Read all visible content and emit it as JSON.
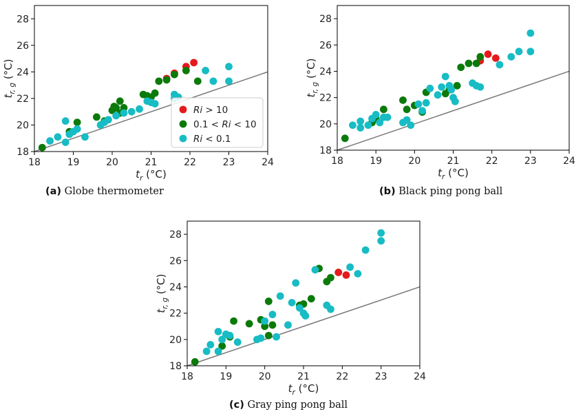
{
  "colors": {
    "red": "#e41a1c",
    "green": "#0b7a0b",
    "cyan": "#17bcc4",
    "line": "#777777"
  },
  "legend": [
    {
      "label_prefix": "",
      "label_var": "Ri",
      "label_suffix": " > 10",
      "color": "red"
    },
    {
      "label_prefix": "0.1 < ",
      "label_var": "Ri",
      "label_suffix": " < 10",
      "color": "green"
    },
    {
      "label_prefix": "",
      "label_var": "Ri",
      "label_suffix": " < 0.1",
      "color": "cyan"
    }
  ],
  "chart_data": [
    {
      "type": "scatter",
      "caption_id": "(a)",
      "caption_text": "Globe thermometer",
      "xlabel": {
        "var": "t",
        "sub": "r",
        "unit": " (°C)"
      },
      "ylabel": {
        "var": "t",
        "sub": "r, g",
        "unit": " (°C)"
      },
      "xlim": [
        18,
        24
      ],
      "ylim": [
        18,
        29
      ],
      "xticks": [
        18,
        19,
        20,
        21,
        22,
        23,
        24
      ],
      "yticks": [
        18,
        20,
        22,
        24,
        26,
        28
      ],
      "reference_line": [
        [
          18,
          18
        ],
        [
          24,
          24
        ]
      ],
      "legend_location": "lower-right",
      "series": [
        {
          "color": "red",
          "points": [
            [
              21.4,
              23.5
            ],
            [
              21.6,
              23.9
            ],
            [
              21.9,
              24.4
            ],
            [
              22.1,
              24.7
            ]
          ]
        },
        {
          "color": "green",
          "points": [
            [
              18.2,
              18.3
            ],
            [
              18.9,
              19.5
            ],
            [
              19.1,
              20.2
            ],
            [
              19.6,
              20.6
            ],
            [
              19.8,
              20.3
            ],
            [
              20.0,
              21.1
            ],
            [
              20.1,
              21.3
            ],
            [
              20.2,
              21.8
            ],
            [
              20.3,
              21.3
            ],
            [
              20.2,
              20.9
            ],
            [
              20.8,
              22.3
            ],
            [
              20.9,
              22.2
            ],
            [
              21.0,
              22.1
            ],
            [
              21.1,
              22.4
            ],
            [
              21.2,
              23.3
            ],
            [
              21.4,
              23.4
            ],
            [
              21.6,
              23.8
            ],
            [
              21.9,
              24.1
            ],
            [
              22.2,
              23.3
            ],
            [
              20.05,
              21.4
            ]
          ]
        },
        {
          "color": "cyan",
          "points": [
            [
              18.4,
              18.8
            ],
            [
              18.6,
              19.1
            ],
            [
              18.8,
              18.7
            ],
            [
              18.8,
              20.3
            ],
            [
              18.9,
              19.3
            ],
            [
              19.0,
              19.5
            ],
            [
              19.1,
              19.7
            ],
            [
              19.3,
              19.1
            ],
            [
              19.7,
              20.0
            ],
            [
              19.8,
              20.2
            ],
            [
              19.9,
              20.4
            ],
            [
              20.1,
              20.7
            ],
            [
              20.3,
              20.9
            ],
            [
              20.5,
              21.0
            ],
            [
              20.7,
              21.2
            ],
            [
              20.9,
              21.8
            ],
            [
              21.0,
              21.7
            ],
            [
              21.1,
              21.6
            ],
            [
              21.6,
              22.3
            ],
            [
              21.7,
              22.1
            ],
            [
              21.6,
              22.0
            ],
            [
              22.4,
              24.1
            ],
            [
              22.6,
              23.3
            ],
            [
              23.0,
              24.4
            ],
            [
              23.0,
              23.3
            ]
          ]
        }
      ]
    },
    {
      "type": "scatter",
      "caption_id": "(b)",
      "caption_text": "Black ping pong ball",
      "xlabel": {
        "var": "t",
        "sub": "r",
        "unit": " (°C)"
      },
      "ylabel": {
        "var": "t",
        "sub": "r, g",
        "unit": " (°C)"
      },
      "xlim": [
        18,
        24
      ],
      "ylim": [
        18,
        29
      ],
      "xticks": [
        18,
        19,
        20,
        21,
        22,
        23,
        24
      ],
      "yticks": [
        18,
        20,
        22,
        24,
        26,
        28
      ],
      "reference_line": [
        [
          18,
          18
        ],
        [
          24,
          24
        ]
      ],
      "series": [
        {
          "color": "red",
          "points": [
            [
              21.7,
              24.8
            ],
            [
              21.9,
              25.3
            ],
            [
              22.1,
              25.0
            ]
          ]
        },
        {
          "color": "green",
          "points": [
            [
              18.2,
              18.9
            ],
            [
              18.9,
              20.1
            ],
            [
              19.0,
              20.4
            ],
            [
              19.2,
              21.1
            ],
            [
              19.7,
              21.8
            ],
            [
              19.8,
              21.1
            ],
            [
              20.0,
              21.4
            ],
            [
              20.2,
              20.9
            ],
            [
              20.3,
              22.4
            ],
            [
              20.8,
              22.3
            ],
            [
              20.9,
              22.6
            ],
            [
              21.1,
              22.9
            ],
            [
              21.2,
              24.3
            ],
            [
              21.4,
              24.6
            ],
            [
              21.6,
              24.6
            ],
            [
              21.7,
              25.1
            ]
          ]
        },
        {
          "color": "cyan",
          "points": [
            [
              18.4,
              19.9
            ],
            [
              18.6,
              20.2
            ],
            [
              18.6,
              19.7
            ],
            [
              18.8,
              19.9
            ],
            [
              18.9,
              20.4
            ],
            [
              19.0,
              20.7
            ],
            [
              19.1,
              20.1
            ],
            [
              19.2,
              20.5
            ],
            [
              19.3,
              20.5
            ],
            [
              19.7,
              20.1
            ],
            [
              19.8,
              20.3
            ],
            [
              19.9,
              19.9
            ],
            [
              20.1,
              21.5
            ],
            [
              20.2,
              21.0
            ],
            [
              20.3,
              21.6
            ],
            [
              20.4,
              22.7
            ],
            [
              20.6,
              22.2
            ],
            [
              20.7,
              22.8
            ],
            [
              20.8,
              23.6
            ],
            [
              20.9,
              22.9
            ],
            [
              20.95,
              22.6
            ],
            [
              21.0,
              22.0
            ],
            [
              21.05,
              21.7
            ],
            [
              21.5,
              23.1
            ],
            [
              21.6,
              22.9
            ],
            [
              21.7,
              22.8
            ],
            [
              22.2,
              24.5
            ],
            [
              22.5,
              25.1
            ],
            [
              22.7,
              25.5
            ],
            [
              23.0,
              25.5
            ],
            [
              23.0,
              26.9
            ]
          ]
        }
      ]
    },
    {
      "type": "scatter",
      "caption_id": "(c)",
      "caption_text": "Gray ping pong ball",
      "xlabel": {
        "var": "t",
        "sub": "r",
        "unit": " (°C)"
      },
      "ylabel": {
        "var": "t",
        "sub": "r, g",
        "unit": " (°C)"
      },
      "xlim": [
        18,
        24
      ],
      "ylim": [
        18,
        29
      ],
      "xticks": [
        18,
        19,
        20,
        21,
        22,
        23,
        24
      ],
      "yticks": [
        18,
        20,
        22,
        24,
        26,
        28
      ],
      "reference_line": [
        [
          18,
          18
        ],
        [
          24,
          24
        ]
      ],
      "series": [
        {
          "color": "red",
          "points": [
            [
              21.9,
              25.1
            ],
            [
              22.1,
              24.9
            ]
          ]
        },
        {
          "color": "green",
          "points": [
            [
              18.2,
              18.3
            ],
            [
              18.9,
              19.5
            ],
            [
              19.1,
              20.2
            ],
            [
              19.2,
              21.4
            ],
            [
              19.6,
              21.2
            ],
            [
              19.9,
              21.5
            ],
            [
              20.0,
              21.0
            ],
            [
              20.1,
              20.3
            ],
            [
              20.1,
              22.9
            ],
            [
              20.2,
              21.1
            ],
            [
              20.9,
              22.6
            ],
            [
              21.0,
              22.7
            ],
            [
              21.2,
              23.1
            ],
            [
              21.4,
              25.4
            ],
            [
              21.6,
              24.4
            ],
            [
              21.7,
              24.7
            ]
          ]
        },
        {
          "color": "cyan",
          "points": [
            [
              18.5,
              19.1
            ],
            [
              18.6,
              19.6
            ],
            [
              18.8,
              19.1
            ],
            [
              18.8,
              20.6
            ],
            [
              18.9,
              20.0
            ],
            [
              19.0,
              20.4
            ],
            [
              19.1,
              20.3
            ],
            [
              19.3,
              19.8
            ],
            [
              19.8,
              20.0
            ],
            [
              19.9,
              20.1
            ],
            [
              20.0,
              21.4
            ],
            [
              20.2,
              21.9
            ],
            [
              20.3,
              20.2
            ],
            [
              20.4,
              23.3
            ],
            [
              20.6,
              21.1
            ],
            [
              20.7,
              22.8
            ],
            [
              20.8,
              24.3
            ],
            [
              20.9,
              22.4
            ],
            [
              21.0,
              22.0
            ],
            [
              21.05,
              21.8
            ],
            [
              21.3,
              25.3
            ],
            [
              21.6,
              22.6
            ],
            [
              21.7,
              22.3
            ],
            [
              22.2,
              25.5
            ],
            [
              22.4,
              25.0
            ],
            [
              22.6,
              26.8
            ],
            [
              23.0,
              27.5
            ],
            [
              23.0,
              28.1
            ]
          ]
        }
      ]
    }
  ]
}
